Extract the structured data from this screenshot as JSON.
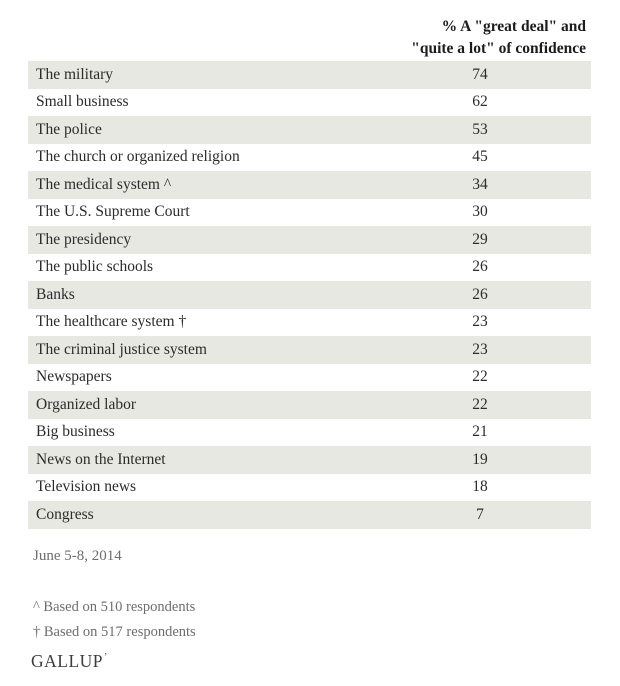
{
  "header": {
    "line1": "% A \"great deal\" and",
    "line2": "\"quite a lot\" of confidence"
  },
  "chart_data": {
    "type": "table",
    "title": "% A \"great deal\" and \"quite a lot\" of confidence",
    "categories": [
      "The military",
      "Small business",
      "The police",
      "The church or organized religion",
      "The medical system ^",
      "The U.S. Supreme Court",
      "The presidency",
      "The public schools",
      "Banks",
      "The healthcare system †",
      "The criminal justice system",
      "Newspapers",
      "Organized labor",
      "Big business",
      "News on the Internet",
      "Television news",
      "Congress"
    ],
    "values": [
      74,
      62,
      53,
      45,
      34,
      30,
      29,
      26,
      26,
      23,
      23,
      22,
      22,
      21,
      19,
      18,
      7
    ],
    "layout": {
      "row_shading": "alternating starting shaded",
      "shaded_row_color": "#e8e8e2",
      "value_column": "centered near right side",
      "grid": "off"
    }
  },
  "footer": {
    "date": "June 5-8, 2014",
    "note1": "^ Based on 510 respondents",
    "note2": "† Based on 517 respondents",
    "logo": "GALLUP",
    "logo_mark": "’"
  }
}
